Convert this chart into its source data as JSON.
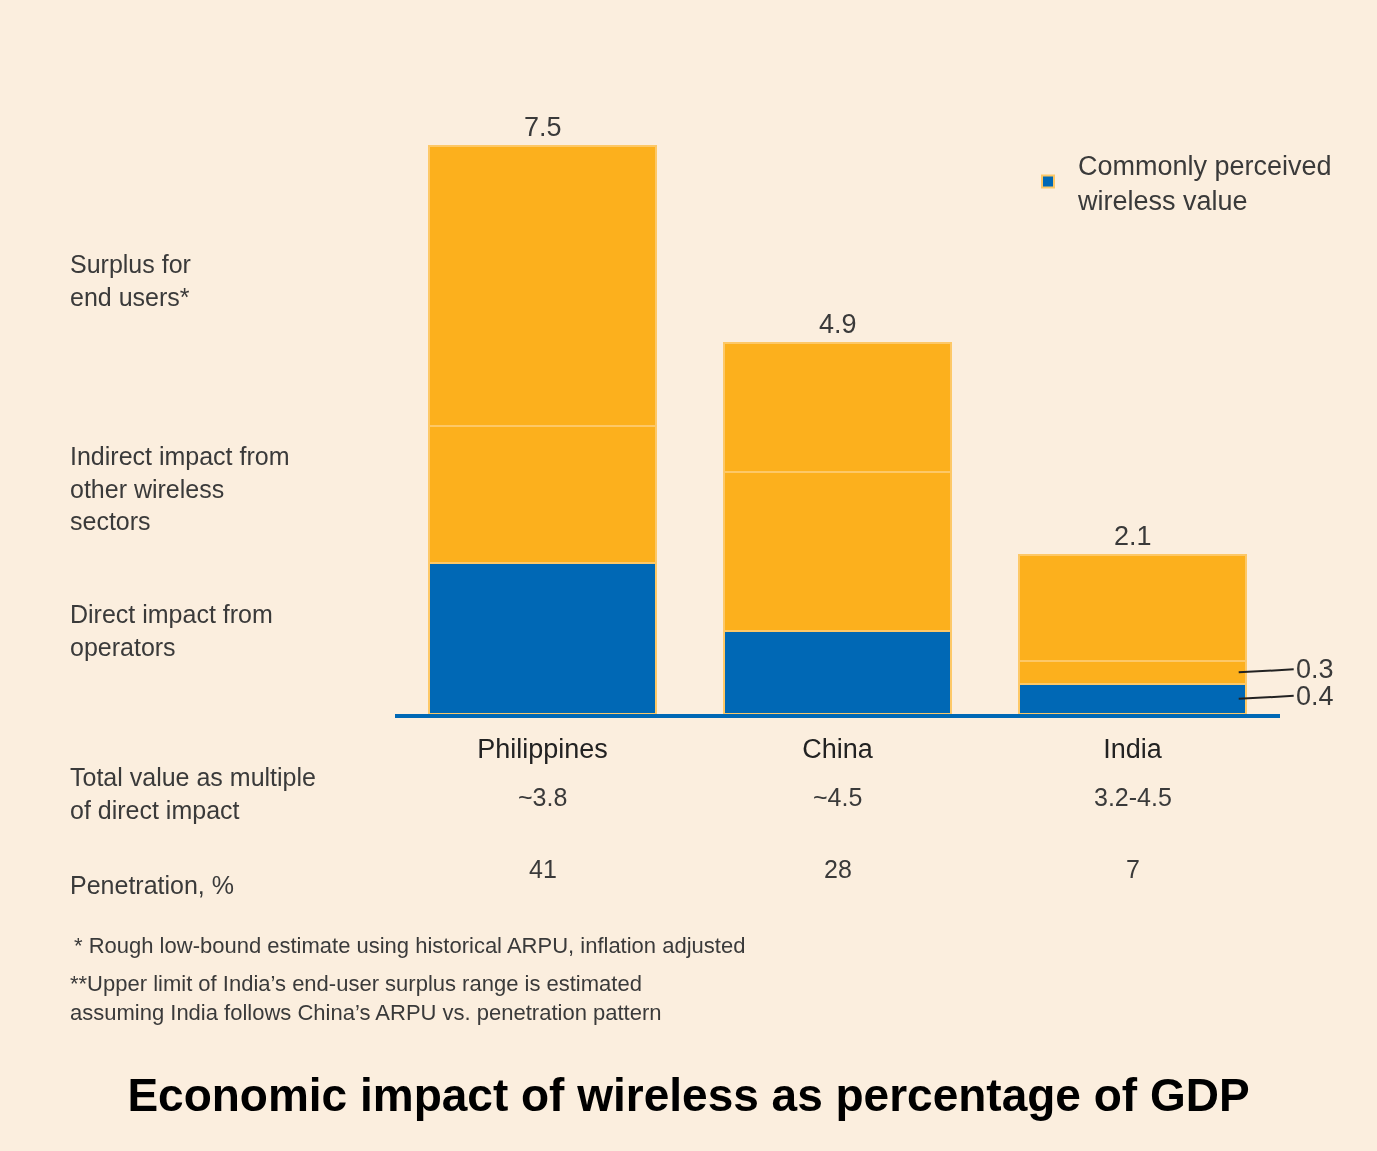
{
  "chart_data": {
    "type": "bar",
    "stacked": true,
    "title": "Economic impact of wireless as percentage of GDP",
    "categories": [
      "Philippines",
      "China",
      "India"
    ],
    "series": [
      {
        "name": "Commonly perceived wireless value",
        "color": "#0068b5",
        "values": [
          2.0,
          1.1,
          0.4
        ],
        "value_labels": [
          null,
          null,
          "0.4"
        ]
      },
      {
        "color": "#fcb01d",
        "values": [
          1.8,
          2.1,
          0.3
        ],
        "value_labels": [
          null,
          null,
          "0.3"
        ]
      },
      {
        "color": "#fcb01d",
        "values": [
          3.7,
          1.7,
          1.4
        ]
      }
    ],
    "totals": [
      "7.5",
      "4.9",
      "2.1"
    ],
    "legend": "top right",
    "annotations": [
      "Surplus for end users*",
      "Indirect impact from other wireless sectors",
      "Direct impact from operators",
      "Total value as multiple of direct impact",
      "Penetration, %",
      "* Rough low-bound estimate using historical ARPU, inflation adjusted",
      "**Upper limit of India’s end-user surplus range is estimated assuming India follows China’s ARPU vs. penetration pattern",
      "~3.8",
      "~4.5",
      "3.2-4.5",
      "41",
      "28",
      "7"
    ]
  }
}
